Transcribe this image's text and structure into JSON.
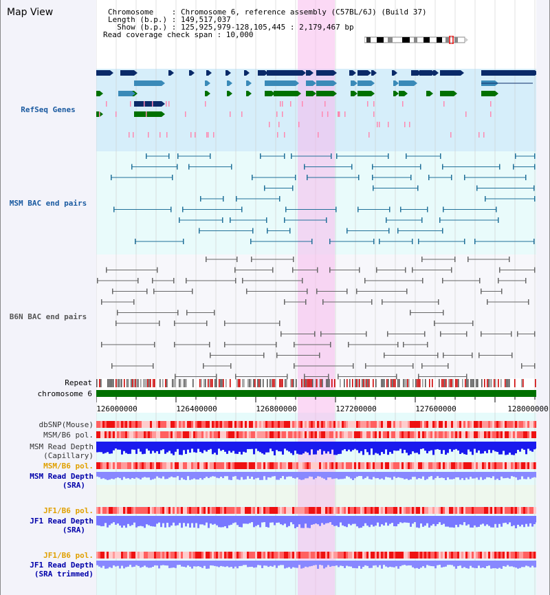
{
  "title": "Map View",
  "header": {
    "line1": "Chromosome    : Chromosome 6, reference assembly (C57BL/6J) (Build 37)",
    "line2": "Length (b.p.) : 149,517,037",
    "line3": "  Show (b.p.) : 125,925,979-128,105,445 : 2,179,467 bp",
    "line4": "Read coverage check span : 10,000"
  },
  "lanes": {
    "refseq": "RefSeq Genes",
    "msm_bac": "MSM BAC end pairs",
    "b6n_bac": "B6N BAC end pairs"
  },
  "tracks": {
    "repeat": "Repeat",
    "chromosome": "chromosome 6",
    "dbsnp": "dbSNP(Mouse)",
    "msm_b6_pol_1": "MSM/B6 pol.",
    "msm_depth_cap_1": "MSM Read Depth",
    "msm_depth_cap_2": "(Capillary)",
    "msm_b6_pol_2": "MSM/B6 pol.",
    "msm_depth_sra_1": "MSM Read Depth",
    "msm_depth_sra_2": "(SRA)",
    "jf1_b6_pol_1": "JF1/B6 pol.",
    "jf1_depth_sra_1": "JF1 Read Depth",
    "jf1_depth_sra_2": "(SRA)",
    "jf1_b6_pol_2": "JF1/B6 pol.",
    "jf1_depth_trim_1": "JF1 Read Depth",
    "jf1_depth_trim_2": "(SRA trimmed)"
  },
  "axis": {
    "ticks": [
      "126000000",
      "126400000",
      "126800000",
      "127200000",
      "127600000",
      "128000000"
    ]
  },
  "colors": {
    "refseq_bg": "#d6eefa",
    "msm_bg": "#e9fbfb",
    "highlight": "#f7d2f2",
    "msm_label": "#1a5aa0",
    "label_blue": "#0000aa",
    "label_orange": "#e0a000",
    "chromosome": "#007000",
    "gene_dark": "#0a2a68",
    "gene_mid": "#3a8ab8",
    "gene_green": "#007000",
    "pink": "#ff88b0"
  }
}
